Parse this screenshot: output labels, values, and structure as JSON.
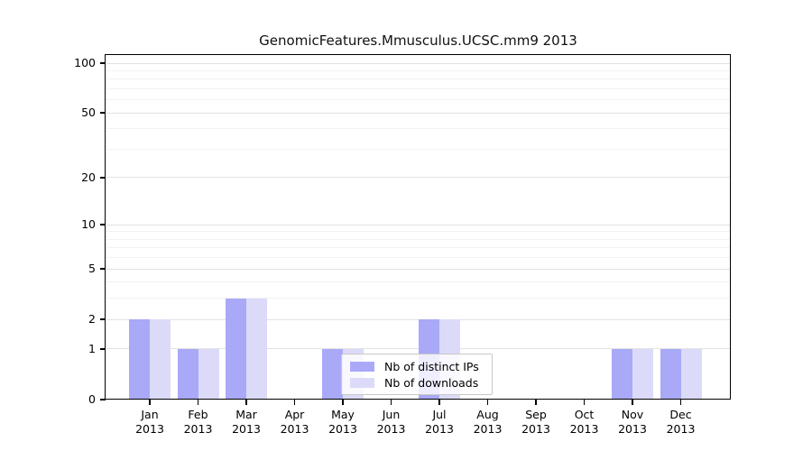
{
  "chart_data": {
    "type": "bar",
    "title": "GenomicFeatures.Mmusculus.UCSC.mm9 2013",
    "categories": [
      "Jan",
      "Feb",
      "Mar",
      "Apr",
      "May",
      "Jun",
      "Jul",
      "Aug",
      "Sep",
      "Oct",
      "Nov",
      "Dec"
    ],
    "category_year": "2013",
    "series": [
      {
        "name": "Nb of distinct IPs",
        "color": "#a9a9f8",
        "values": [
          2,
          1,
          3,
          0,
          1,
          0,
          2,
          0,
          0,
          0,
          1,
          1
        ]
      },
      {
        "name": "Nb of downloads",
        "color": "#dbdbf9",
        "values": [
          2,
          1,
          3,
          0,
          1,
          0,
          2,
          0,
          0,
          0,
          1,
          1
        ]
      }
    ],
    "xlabel": "",
    "ylabel": "",
    "y_scale": "log1p",
    "ylim": [
      0,
      113
    ],
    "y_major_ticks": [
      0,
      1,
      2,
      5,
      10,
      20,
      50,
      100
    ],
    "y_minor_gridlines": [
      3,
      4,
      6,
      7,
      8,
      9,
      30,
      40,
      60,
      70,
      80,
      90
    ],
    "grid": "horizontal",
    "legend_position": "inside-bottom-center",
    "colors": {
      "axis": "#000000",
      "grid_major": "#e2e2e2",
      "grid_minor": "#f2f2f2",
      "background": "#ffffff"
    }
  }
}
